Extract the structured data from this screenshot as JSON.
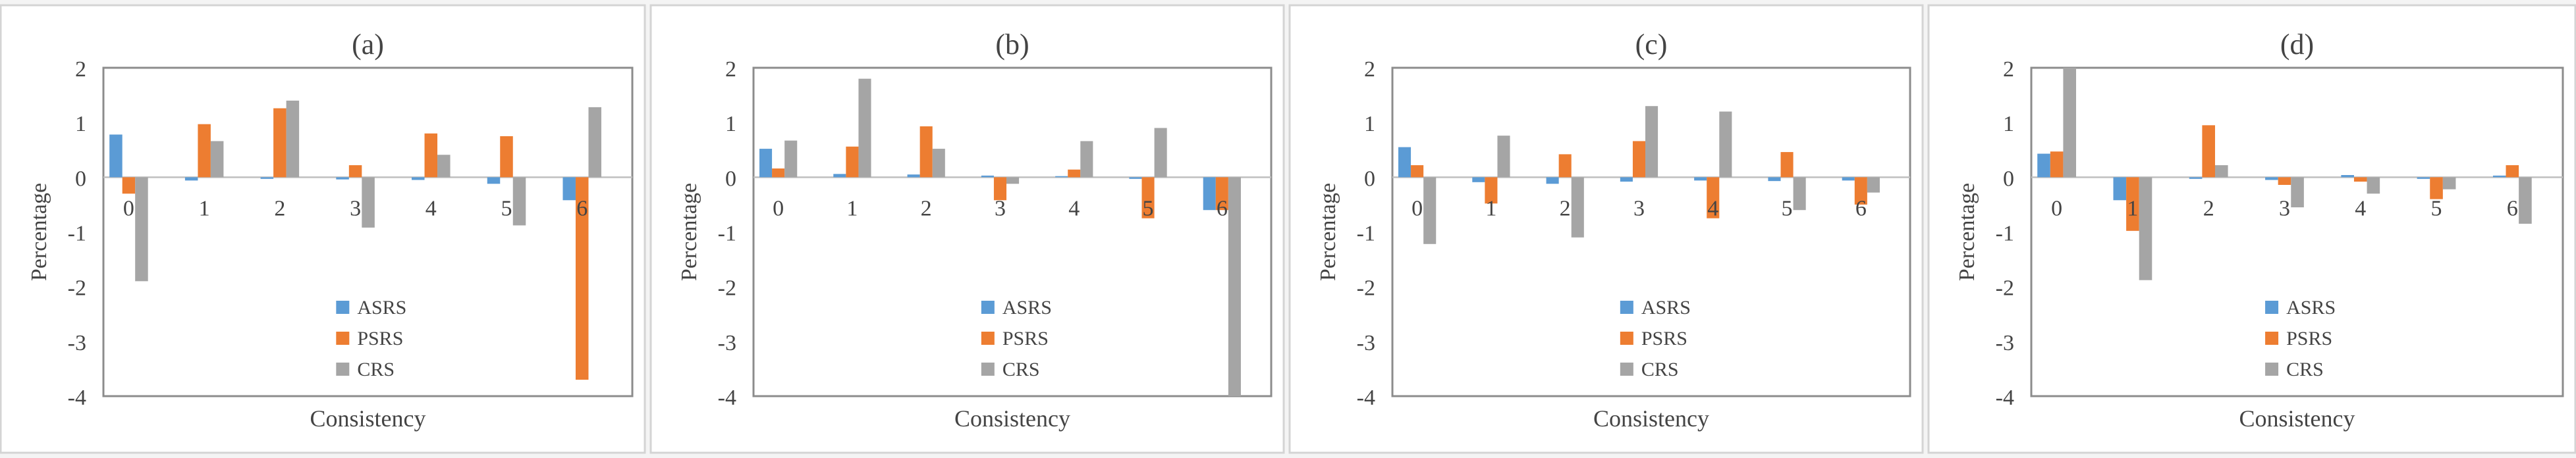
{
  "chart_data": [
    {
      "type": "bar",
      "title": "(a)",
      "xlabel": "Consistency",
      "ylabel": "Percentage",
      "ylim": [
        -4,
        2
      ],
      "yticks": [
        2,
        1,
        0,
        -1,
        -2,
        -3,
        -4
      ],
      "categories": [
        "0",
        "1",
        "2",
        "3",
        "4",
        "5",
        "6"
      ],
      "legend_position": "lower-center",
      "series": [
        {
          "name": "ASRS",
          "color": "#5B9BD5",
          "values": [
            0.78,
            -0.06,
            -0.03,
            -0.04,
            -0.05,
            -0.12,
            -0.42
          ]
        },
        {
          "name": "PSRS",
          "color": "#ED7D31",
          "values": [
            -0.3,
            0.97,
            1.26,
            0.22,
            0.8,
            0.75,
            -3.7
          ]
        },
        {
          "name": "CRS",
          "color": "#A5A5A5",
          "values": [
            -1.9,
            0.66,
            1.4,
            -0.92,
            0.41,
            -0.88,
            1.28
          ]
        }
      ]
    },
    {
      "type": "bar",
      "title": "(b)",
      "xlabel": "Consistency",
      "ylabel": "Percentage",
      "ylim": [
        -4,
        2
      ],
      "yticks": [
        2,
        1,
        0,
        -1,
        -2,
        -3,
        -4
      ],
      "categories": [
        "0",
        "1",
        "2",
        "3",
        "4",
        "5",
        "6"
      ],
      "legend_position": "lower-center",
      "series": [
        {
          "name": "ASRS",
          "color": "#5B9BD5",
          "values": [
            0.52,
            0.06,
            0.05,
            0.03,
            0.02,
            -0.03,
            -0.6
          ]
        },
        {
          "name": "PSRS",
          "color": "#ED7D31",
          "values": [
            0.16,
            0.56,
            0.93,
            -0.42,
            0.14,
            -0.75,
            -0.6
          ]
        },
        {
          "name": "CRS",
          "color": "#A5A5A5",
          "values": [
            0.67,
            1.8,
            0.52,
            -0.12,
            0.66,
            0.9,
            -4.0
          ]
        }
      ]
    },
    {
      "type": "bar",
      "title": "(c)",
      "xlabel": "Consistency",
      "ylabel": "Percentage",
      "ylim": [
        -4,
        2
      ],
      "yticks": [
        2,
        1,
        0,
        -1,
        -2,
        -3,
        -4
      ],
      "categories": [
        "0",
        "1",
        "2",
        "3",
        "4",
        "5",
        "6"
      ],
      "legend_position": "lower-center",
      "series": [
        {
          "name": "ASRS",
          "color": "#5B9BD5",
          "values": [
            0.55,
            -0.09,
            -0.12,
            -0.08,
            -0.06,
            -0.07,
            -0.06
          ]
        },
        {
          "name": "PSRS",
          "color": "#ED7D31",
          "values": [
            0.22,
            -0.48,
            0.42,
            0.66,
            -0.75,
            0.46,
            -0.5
          ]
        },
        {
          "name": "CRS",
          "color": "#A5A5A5",
          "values": [
            -1.22,
            0.76,
            -1.1,
            1.3,
            1.2,
            -0.6,
            -0.28
          ]
        }
      ]
    },
    {
      "type": "bar",
      "title": "(d)",
      "xlabel": "Consistency",
      "ylabel": "Percentage",
      "ylim": [
        -4,
        2
      ],
      "yticks": [
        2,
        1,
        0,
        -1,
        -2,
        -3,
        -4
      ],
      "categories": [
        "0",
        "1",
        "2",
        "3",
        "4",
        "5",
        "6"
      ],
      "legend_position": "lower-center",
      "series": [
        {
          "name": "ASRS",
          "color": "#5B9BD5",
          "values": [
            0.43,
            -0.42,
            -0.03,
            -0.05,
            0.04,
            -0.03,
            0.03
          ]
        },
        {
          "name": "PSRS",
          "color": "#ED7D31",
          "values": [
            0.47,
            -0.98,
            0.95,
            -0.14,
            -0.08,
            -0.4,
            0.22
          ]
        },
        {
          "name": "CRS",
          "color": "#A5A5A5",
          "values": [
            2.0,
            -1.88,
            0.22,
            -0.55,
            -0.3,
            -0.22,
            -0.85
          ]
        }
      ]
    }
  ]
}
